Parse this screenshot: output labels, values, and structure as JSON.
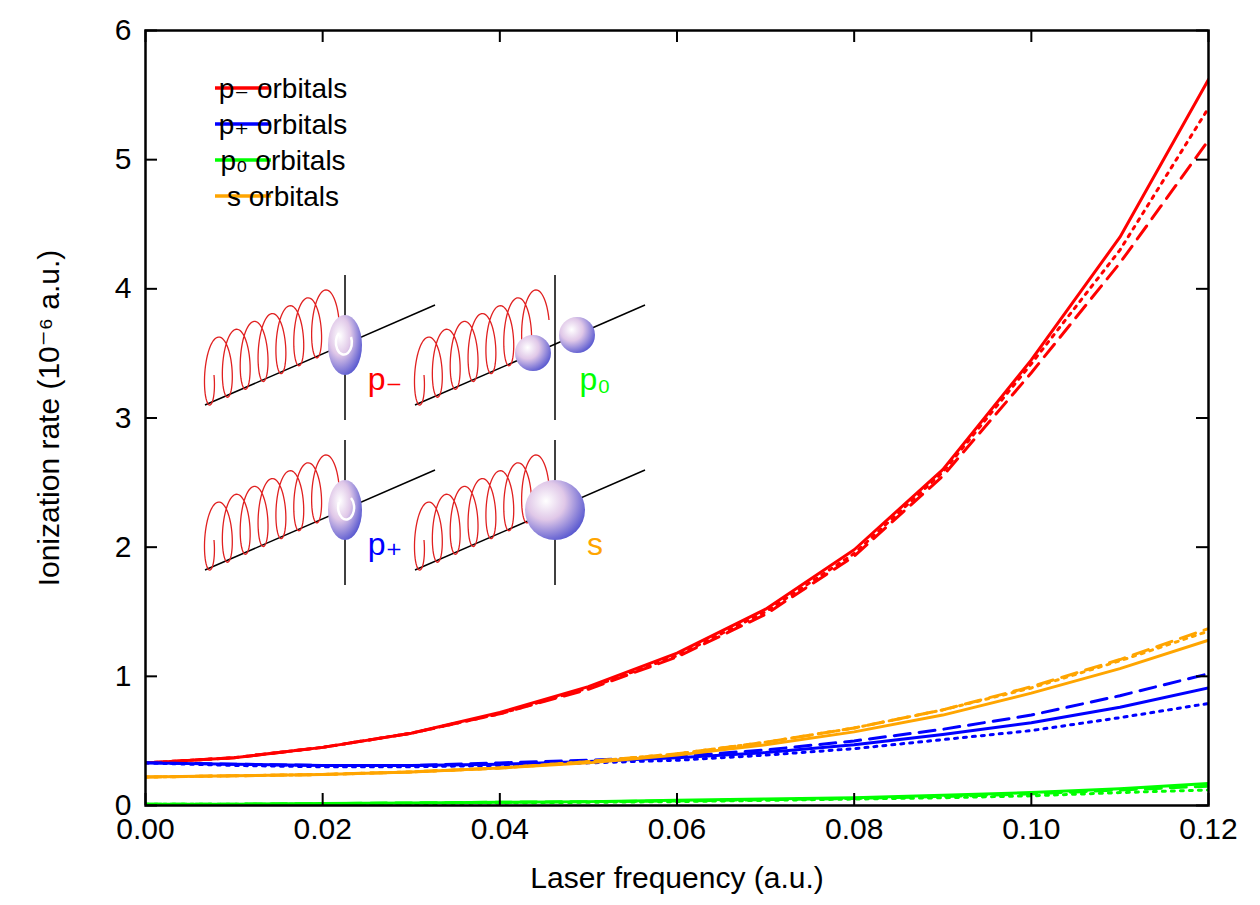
{
  "chart_data": {
    "type": "line",
    "x_label": "Laser frequency (a.u.)",
    "y_label": "Ionization rate (10⁻⁶ a.u.)",
    "x": [
      0.0,
      0.01,
      0.02,
      0.03,
      0.04,
      0.05,
      0.06,
      0.07,
      0.08,
      0.09,
      0.1,
      0.11,
      0.12
    ],
    "xlim": [
      0,
      0.12
    ],
    "xticks": [
      {
        "value": 0,
        "label": "0.00"
      },
      {
        "value": 0.02,
        "label": "0.02"
      },
      {
        "value": 0.04,
        "label": "0.04"
      },
      {
        "value": 0.06,
        "label": "0.06"
      },
      {
        "value": 0.08,
        "label": "0.08"
      },
      {
        "value": 0.1,
        "label": "0.10"
      },
      {
        "value": 0.12,
        "label": "0.12"
      }
    ],
    "ylim": [
      0,
      6
    ],
    "yticks": [
      0,
      1,
      2,
      3,
      4,
      5,
      6
    ],
    "grid": false,
    "legend": "upper left",
    "series": [
      {
        "name": "p₋ orbitals",
        "color": "#ff0000",
        "line_style": "solid",
        "values": [
          0.33,
          0.37,
          0.45,
          0.56,
          0.72,
          0.92,
          1.18,
          1.52,
          1.98,
          2.6,
          3.45,
          4.4,
          5.62
        ]
      },
      {
        "name": "p₋ orbitals",
        "color": "#ff0000",
        "line_style": "dashed",
        "values": [
          0.33,
          0.37,
          0.45,
          0.56,
          0.71,
          0.9,
          1.15,
          1.48,
          1.93,
          2.55,
          3.35,
          4.2,
          5.15
        ]
      },
      {
        "name": "p₋ orbitals",
        "color": "#ff0000",
        "line_style": "dotted",
        "values": [
          0.33,
          0.37,
          0.45,
          0.56,
          0.71,
          0.91,
          1.16,
          1.5,
          1.95,
          2.58,
          3.42,
          4.3,
          5.4
        ]
      },
      {
        "name": "p₊ orbitals",
        "color": "#0000ff",
        "line_style": "solid",
        "values": [
          0.33,
          0.32,
          0.31,
          0.31,
          0.32,
          0.34,
          0.37,
          0.41,
          0.47,
          0.55,
          0.64,
          0.76,
          0.91
        ]
      },
      {
        "name": "p₊ orbitals",
        "color": "#0000ff",
        "line_style": "dashed",
        "values": [
          0.33,
          0.32,
          0.31,
          0.31,
          0.33,
          0.35,
          0.38,
          0.43,
          0.5,
          0.59,
          0.7,
          0.85,
          1.02
        ]
      },
      {
        "name": "p₊ orbitals",
        "color": "#0000ff",
        "line_style": "dotted",
        "values": [
          0.33,
          0.31,
          0.3,
          0.3,
          0.31,
          0.33,
          0.35,
          0.39,
          0.44,
          0.51,
          0.58,
          0.68,
          0.79
        ]
      },
      {
        "name": "p₀ orbitals",
        "color": "#00ff00",
        "line_style": "solid",
        "values": [
          0.01,
          0.01,
          0.015,
          0.02,
          0.025,
          0.03,
          0.04,
          0.05,
          0.06,
          0.08,
          0.1,
          0.13,
          0.17
        ]
      },
      {
        "name": "p₀ orbitals",
        "color": "#00ff00",
        "line_style": "dashed",
        "values": [
          0.01,
          0.01,
          0.015,
          0.02,
          0.025,
          0.03,
          0.035,
          0.045,
          0.055,
          0.07,
          0.09,
          0.12,
          0.15
        ]
      },
      {
        "name": "p₀ orbitals",
        "color": "#00ff00",
        "line_style": "dotted",
        "values": [
          0.01,
          0.01,
          0.01,
          0.015,
          0.02,
          0.025,
          0.03,
          0.04,
          0.05,
          0.06,
          0.075,
          0.1,
          0.12
        ]
      },
      {
        "name": "s orbitals",
        "color": "#ffa500",
        "line_style": "solid",
        "values": [
          0.22,
          0.23,
          0.24,
          0.26,
          0.29,
          0.33,
          0.39,
          0.47,
          0.57,
          0.7,
          0.87,
          1.06,
          1.28
        ]
      },
      {
        "name": "s orbitals",
        "color": "#ffa500",
        "line_style": "dashed",
        "values": [
          0.22,
          0.23,
          0.24,
          0.26,
          0.29,
          0.34,
          0.4,
          0.49,
          0.6,
          0.74,
          0.92,
          1.13,
          1.37
        ]
      },
      {
        "name": "s orbitals",
        "color": "#ffa500",
        "line_style": "dotted",
        "values": [
          0.22,
          0.23,
          0.24,
          0.26,
          0.29,
          0.34,
          0.4,
          0.49,
          0.6,
          0.74,
          0.91,
          1.12,
          1.35
        ]
      }
    ],
    "annotations": [
      {
        "text": "p₋",
        "color": "#ff0000"
      },
      {
        "text": "p₀",
        "color": "#00ff00"
      },
      {
        "text": "p₊",
        "color": "#0000ff"
      },
      {
        "text": "s",
        "color": "#ffa500"
      }
    ]
  }
}
